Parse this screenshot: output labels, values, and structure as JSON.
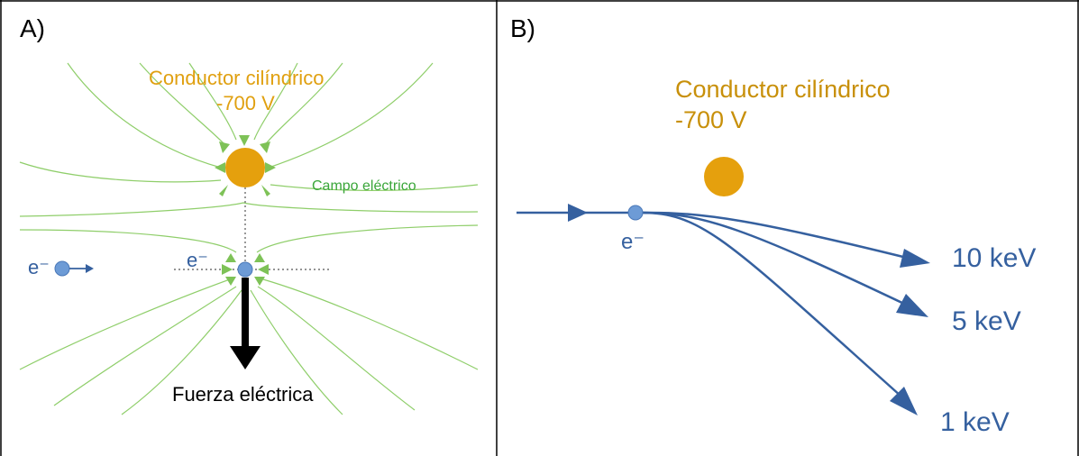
{
  "panel_a": {
    "label": "A)",
    "conductor_name": "Conductor cilíndrico",
    "conductor_voltage": "-700 V",
    "field_label": "Campo eléctrico",
    "electron_label": "e⁻",
    "electron_moving_label": "e⁻",
    "force_label": "Fuerza eléctrica"
  },
  "panel_b": {
    "label": "B)",
    "conductor_name": "Conductor cilíndrico",
    "conductor_voltage": "-700 V",
    "electron_label": "e⁻",
    "trajectories": [
      "10 keV",
      "5 keV",
      "1 keV"
    ]
  },
  "colors": {
    "conductor": "#e5a00d",
    "conductor_text": "#e0a010",
    "conductor_text_b": "#c8900a",
    "field_line": "#8fce6a",
    "field_arrow": "#7ec257",
    "field_text": "#3aa63a",
    "electron": "#6d9bd6",
    "trajectory": "#35609f",
    "force": "#000000"
  }
}
